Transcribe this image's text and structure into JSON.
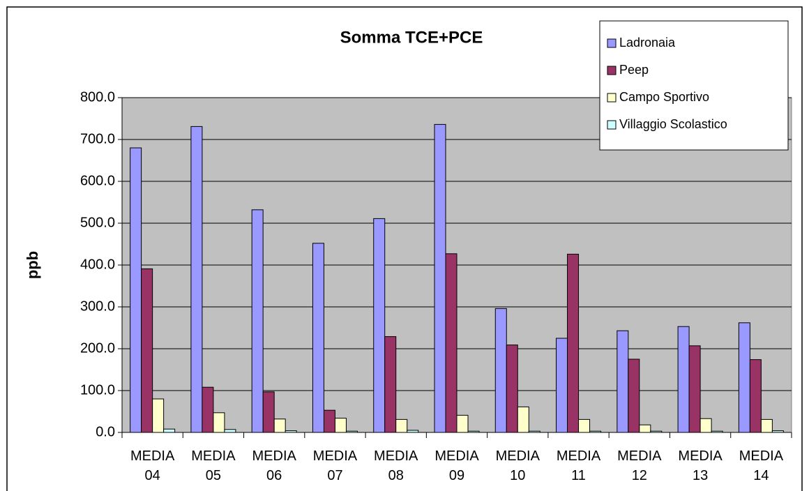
{
  "chart_data": {
    "type": "bar",
    "title": "Somma TCE+PCE",
    "y_label": "ppb",
    "categories": [
      "MEDIA 04",
      "MEDIA 05",
      "MEDIA 06",
      "MEDIA 07",
      "MEDIA 08",
      "MEDIA 09",
      "MEDIA 10",
      "MEDIA 11",
      "MEDIA 12",
      "MEDIA 13",
      "MEDIA 14"
    ],
    "series": [
      {
        "name": "Ladronaia",
        "color": "#9999ff",
        "values": [
          680,
          731,
          532,
          452,
          511,
          736,
          296,
          225,
          243,
          253,
          262
        ]
      },
      {
        "name": "Peep",
        "color": "#993366",
        "values": [
          391,
          108,
          97,
          53,
          229,
          427,
          209,
          426,
          175,
          207,
          174
        ]
      },
      {
        "name": "Campo Sportivo",
        "color": "#ffffcc",
        "values": [
          80,
          47,
          32,
          34,
          31,
          41,
          61,
          31,
          18,
          33,
          31
        ]
      },
      {
        "name": "Villaggio Scolastico",
        "color": "#ccffff",
        "values": [
          8,
          7,
          4,
          3,
          5,
          3,
          3,
          3,
          3,
          3,
          4
        ]
      }
    ],
    "ylim": [
      0,
      800
    ],
    "yticks": [
      {
        "value": 0,
        "label": "0.0"
      },
      {
        "value": 100,
        "label": "100.0"
      },
      {
        "value": 200,
        "label": "200.0"
      },
      {
        "value": 300,
        "label": "300.0"
      },
      {
        "value": 400,
        "label": "400.0"
      },
      {
        "value": 500,
        "label": "500.0"
      },
      {
        "value": 600,
        "label": "600.0"
      },
      {
        "value": 700,
        "label": "700.0"
      },
      {
        "value": 800,
        "label": "800.0"
      }
    ],
    "grid": true,
    "legend": "upper right",
    "plot_background": "#c0c0c0"
  }
}
